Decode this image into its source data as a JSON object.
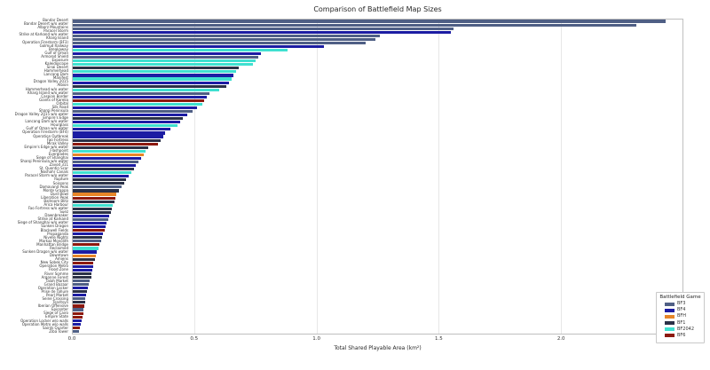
{
  "chart_data": {
    "type": "bar",
    "orientation": "horizontal",
    "title": "Comparison of Battlefield Map Sizes",
    "xlabel": "Total Shared Playable Area (km²)",
    "xlim": [
      0,
      2.5
    ],
    "xticks": [
      "0.0",
      "0.5",
      "1.0",
      "1.5",
      "2.0",
      "2.5"
    ],
    "grid": "vertical",
    "legend": {
      "title": "Battlefield Game",
      "position": "lower right",
      "entries": [
        {
          "label": "BF3",
          "color": "#4f5f85"
        },
        {
          "label": "BF4",
          "color": "#1c1ca3"
        },
        {
          "label": "BFH",
          "color": "#e78629"
        },
        {
          "label": "BF1",
          "color": "#2b3147"
        },
        {
          "label": "BF2042",
          "color": "#3fe0d0"
        },
        {
          "label": "BF6",
          "color": "#8c190f"
        }
      ]
    },
    "games": {
      "BF3": "#4f5f85",
      "BF4": "#1c1ca3",
      "BFH": "#e78629",
      "BF1": "#2b3147",
      "BF2042": "#3fe0d0",
      "BF6": "#8c190f"
    },
    "bars": [
      {
        "label": "Bandar Desert",
        "game": "BF3",
        "value": 2.43
      },
      {
        "label": "Bandar Desert w/o water",
        "game": "BF3",
        "value": 2.31
      },
      {
        "label": "Alborz Mountains",
        "game": "BF3",
        "value": 1.56
      },
      {
        "label": "Paracel Storm",
        "game": "BF4",
        "value": 1.55
      },
      {
        "label": "Strike at Karkand w/o water",
        "game": "BF3",
        "value": 1.26
      },
      {
        "label": "Kharg Island",
        "game": "BF3",
        "value": 1.24
      },
      {
        "label": "Operation Firestorm (BF3)",
        "game": "BF3",
        "value": 1.2
      },
      {
        "label": "Golmud Railway",
        "game": "BF4",
        "value": 1.03
      },
      {
        "label": "Breakaway",
        "game": "BF2042",
        "value": 0.88
      },
      {
        "label": "Gulf of Oman",
        "game": "BF4",
        "value": 0.77
      },
      {
        "label": "Armored Shield",
        "game": "BF3",
        "value": 0.76
      },
      {
        "label": "Exposure",
        "game": "BF2042",
        "value": 0.75
      },
      {
        "label": "Kaleidoscope",
        "game": "BF2042",
        "value": 0.74
      },
      {
        "label": "Sinai Desert",
        "game": "BF1",
        "value": 0.68
      },
      {
        "label": "Hammerhead",
        "game": "BF2042",
        "value": 0.67
      },
      {
        "label": "Lancang Dam",
        "game": "BF4",
        "value": 0.66
      },
      {
        "label": "Manifest",
        "game": "BF2042",
        "value": 0.65
      },
      {
        "label": "Dragon Valley 2015",
        "game": "BF4",
        "value": 0.64
      },
      {
        "label": "Albion",
        "game": "BF1",
        "value": 0.63
      },
      {
        "label": "Hammerhead w/o water",
        "game": "BF2042",
        "value": 0.6
      },
      {
        "label": "Kharg Island w/o water",
        "game": "BF3",
        "value": 0.56
      },
      {
        "label": "Caspian Border",
        "game": "BF4",
        "value": 0.55
      },
      {
        "label": "Giants of Karelia",
        "game": "BF6",
        "value": 0.54
      },
      {
        "label": "Orbital",
        "game": "BF2042",
        "value": 0.53
      },
      {
        "label": "Silk Road",
        "game": "BF4",
        "value": 0.51
      },
      {
        "label": "Sharqi Peninsula",
        "game": "BF3",
        "value": 0.49
      },
      {
        "label": "Dragon Valley 2015 w/o water",
        "game": "BF4",
        "value": 0.47
      },
      {
        "label": "Empire's Edge",
        "game": "BF1",
        "value": 0.45
      },
      {
        "label": "Lancang Dam w/o water",
        "game": "BF4",
        "value": 0.44
      },
      {
        "label": "Hourglass",
        "game": "BF2042",
        "value": 0.43
      },
      {
        "label": "Gulf of Oman w/o water",
        "game": "BF4",
        "value": 0.4
      },
      {
        "label": "Operation Firestorm (BF4)",
        "game": "BF4",
        "value": 0.38
      },
      {
        "label": "Operation Outbreak",
        "game": "BF4",
        "value": 0.37
      },
      {
        "label": "Fao Fortress",
        "game": "BF1",
        "value": 0.36
      },
      {
        "label": "Mirak Valley",
        "game": "BF6",
        "value": 0.35
      },
      {
        "label": "Empire's Edge w/o water",
        "game": "BF1",
        "value": 0.31
      },
      {
        "label": "Flashpoint",
        "game": "BF2042",
        "value": 0.3
      },
      {
        "label": "Everglades",
        "game": "BFH",
        "value": 0.29
      },
      {
        "label": "Siege of Shanghai",
        "game": "BF4",
        "value": 0.28
      },
      {
        "label": "Sharqi Peninsula w/o water",
        "game": "BF3",
        "value": 0.27
      },
      {
        "label": "Zavod 311",
        "game": "BF4",
        "value": 0.26
      },
      {
        "label": "St. Quentin Scar",
        "game": "BF1",
        "value": 0.25
      },
      {
        "label": "Noshahr Canals",
        "game": "BF2042",
        "value": 0.24
      },
      {
        "label": "Paracel Storm w/o water",
        "game": "BF4",
        "value": 0.23
      },
      {
        "label": "Rupture",
        "game": "BF1",
        "value": 0.22
      },
      {
        "label": "Soissons",
        "game": "BF1",
        "value": 0.21
      },
      {
        "label": "Damavand Peak",
        "game": "BF3",
        "value": 0.2
      },
      {
        "label": "Monte Grappa",
        "game": "BF1",
        "value": 0.19
      },
      {
        "label": "Dust Bowl",
        "game": "BFH",
        "value": 0.18
      },
      {
        "label": "Liberation Peak",
        "game": "BF6",
        "value": 0.175
      },
      {
        "label": "Ballroom Blitz",
        "game": "BF1",
        "value": 0.17
      },
      {
        "label": "Arica Harbour",
        "game": "BF2042",
        "value": 0.165
      },
      {
        "label": "Fao Fortress w/o water",
        "game": "BF1",
        "value": 0.16
      },
      {
        "label": "Suez",
        "game": "BF1",
        "value": 0.155
      },
      {
        "label": "Dawnbreaker",
        "game": "BF4",
        "value": 0.15
      },
      {
        "label": "Strike at Karkand",
        "game": "BF3",
        "value": 0.145
      },
      {
        "label": "Siege of Shanghai w/o water",
        "game": "BF4",
        "value": 0.14
      },
      {
        "label": "Sunken Dragon",
        "game": "BF4",
        "value": 0.135
      },
      {
        "label": "Blackwell Fields",
        "game": "BF6",
        "value": 0.13
      },
      {
        "label": "Propaganda",
        "game": "BF4",
        "value": 0.125
      },
      {
        "label": "Nivelle Nights",
        "game": "BF1",
        "value": 0.12
      },
      {
        "label": "Markaz Monolith",
        "game": "BF3",
        "value": 0.115
      },
      {
        "label": "Manhattan Bridge",
        "game": "BF6",
        "value": 0.11
      },
      {
        "label": "Reclaimed",
        "game": "BF2042",
        "value": 0.105
      },
      {
        "label": "Sunken Dragon w/o water",
        "game": "BF4",
        "value": 0.1
      },
      {
        "label": "Downtown",
        "game": "BFH",
        "value": 0.095
      },
      {
        "label": "Amiens",
        "game": "BF1",
        "value": 0.09
      },
      {
        "label": "New Sobek City",
        "game": "BF6",
        "value": 0.085
      },
      {
        "label": "Operation Metro",
        "game": "BF4",
        "value": 0.082
      },
      {
        "label": "Flood Zone",
        "game": "BF4",
        "value": 0.08
      },
      {
        "label": "River Somme",
        "game": "BF1",
        "value": 0.078
      },
      {
        "label": "Argonne Forest",
        "game": "BF1",
        "value": 0.075
      },
      {
        "label": "Talah Market",
        "game": "BF3",
        "value": 0.07
      },
      {
        "label": "Grand Bazaar",
        "game": "BF3",
        "value": 0.065
      },
      {
        "label": "Operation Locker",
        "game": "BF4",
        "value": 0.062
      },
      {
        "label": "Prise de Tahure",
        "game": "BF1",
        "value": 0.06
      },
      {
        "label": "Pearl Market",
        "game": "BF4",
        "value": 0.055
      },
      {
        "label": "Seine Crossing",
        "game": "BF3",
        "value": 0.052
      },
      {
        "label": "Tsaritsyn",
        "game": "BF1",
        "value": 0.05
      },
      {
        "label": "Iberian Offensive",
        "game": "BF6",
        "value": 0.048
      },
      {
        "label": "Epicenter",
        "game": "BF3",
        "value": 0.045
      },
      {
        "label": "Siege of Cairo",
        "game": "BF6",
        "value": 0.042
      },
      {
        "label": "Empire State",
        "game": "BF6",
        "value": 0.04
      },
      {
        "label": "Operation Locker w/o walls",
        "game": "BF4",
        "value": 0.035
      },
      {
        "label": "Operation Metro w/o walls",
        "game": "BF4",
        "value": 0.032
      },
      {
        "label": "Saints Quarter",
        "game": "BF6",
        "value": 0.028
      },
      {
        "label": "Ziba Tower",
        "game": "BF3",
        "value": 0.025
      }
    ]
  }
}
